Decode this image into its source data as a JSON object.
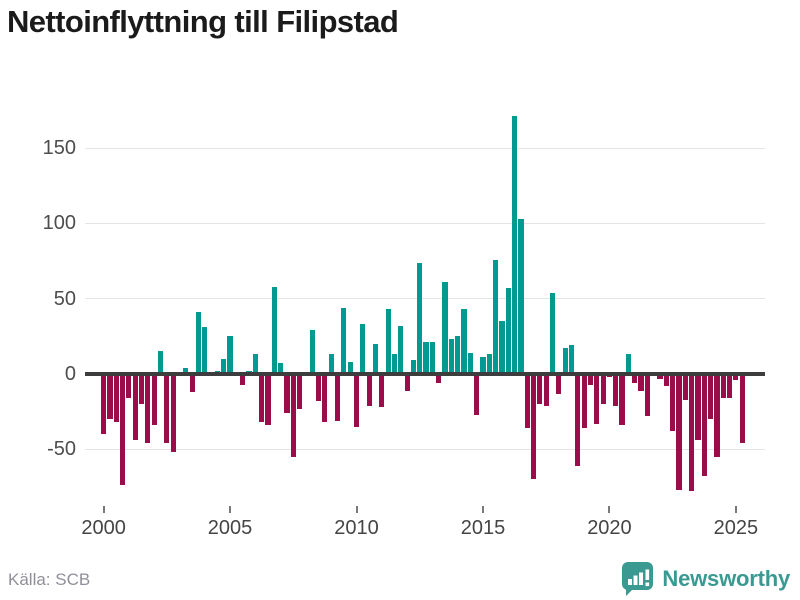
{
  "title": "Nettoinflyttning till Filipstad",
  "source": "Källa: SCB",
  "branding": {
    "name": "Newsworthy"
  },
  "colors": {
    "positive_bar": "#009a91",
    "negative_bar": "#9b0c4b",
    "zero_line": "#3d3d3d",
    "gridline": "#e4e4e4",
    "axis_text": "#4d4d4d",
    "title_text": "#1b1b1b",
    "source_text": "#90909a",
    "brand_teal": "#3a9a92"
  },
  "chart_data": {
    "type": "bar",
    "title": "Nettoinflyttning till Filipstad",
    "x_unit": "quarter",
    "start_period": "2000-Q1",
    "end_period": "2025-Q2",
    "x_tick_labels": [
      "2000",
      "2005",
      "2010",
      "2015",
      "2020",
      "2025"
    ],
    "y_ticks": [
      150,
      100,
      50,
      0,
      -50
    ],
    "ylim": [
      -85,
      185
    ],
    "grid": "horizontal",
    "legend": "none",
    "series": [
      {
        "name": "Nettoinflyttning",
        "values": [
          -40,
          -30,
          -32,
          -74,
          -16,
          -44,
          -20,
          -46,
          -34,
          15,
          -46,
          -52,
          0,
          4,
          -12,
          41,
          31,
          0,
          2,
          10,
          25,
          0,
          -7,
          2,
          13,
          -32,
          -34,
          58,
          7,
          -26,
          -55,
          -23,
          0,
          29,
          -18,
          -32,
          13,
          -31,
          44,
          8,
          -35,
          33,
          -21,
          20,
          -22,
          43,
          13,
          32,
          -11,
          9,
          74,
          21,
          21,
          -6,
          61,
          23,
          25,
          43,
          14,
          -27,
          11,
          13,
          76,
          35,
          57,
          171,
          103,
          -36,
          -70,
          -20,
          -21,
          54,
          -13,
          17,
          19,
          -61,
          -36,
          -7,
          -33,
          -20,
          -2,
          -21,
          -34,
          13,
          -6,
          -11,
          -28,
          0,
          -3,
          -8,
          -38,
          -77,
          -17,
          -78,
          -44,
          -68,
          -30,
          -55,
          -16,
          -16,
          -4,
          -46
        ]
      }
    ]
  }
}
